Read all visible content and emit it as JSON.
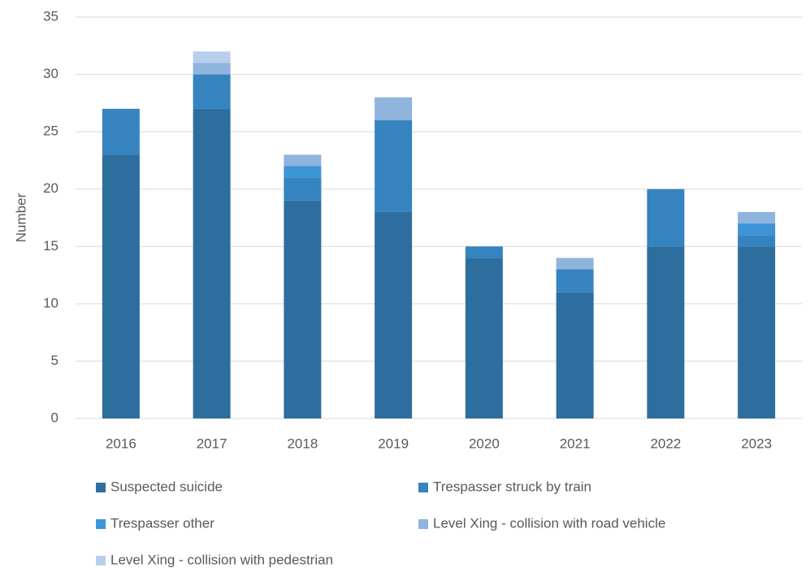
{
  "chart_data": {
    "type": "stacked_bar",
    "y_label": "Number",
    "categories": [
      "2016",
      "2017",
      "2018",
      "2019",
      "2020",
      "2021",
      "2022",
      "2023"
    ],
    "series": [
      {
        "name": "Suspected suicide",
        "color": "#2e6e9e",
        "values": [
          23,
          27,
          19,
          18,
          14,
          11,
          15,
          15
        ]
      },
      {
        "name": "Trespasser struck by train",
        "color": "#3583bf",
        "values": [
          4,
          3,
          2,
          8,
          1,
          2,
          5,
          1
        ]
      },
      {
        "name": "Trespasser other",
        "color": "#3d94d6",
        "values": [
          0,
          0,
          1,
          0,
          0,
          0,
          0,
          1
        ]
      },
      {
        "name": "Level Xing - collision with road vehicle",
        "color": "#8fb4de",
        "values": [
          0,
          1,
          1,
          2,
          0,
          1,
          0,
          1
        ]
      },
      {
        "name": "Level Xing - collision with pedestrian",
        "color": "#b7cfec",
        "values": [
          0,
          1,
          0,
          0,
          0,
          0,
          0,
          0
        ]
      }
    ],
    "ylim": [
      0,
      35
    ],
    "yticks": [
      0,
      5,
      10,
      15,
      20,
      25,
      30,
      35
    ],
    "grid": true
  }
}
